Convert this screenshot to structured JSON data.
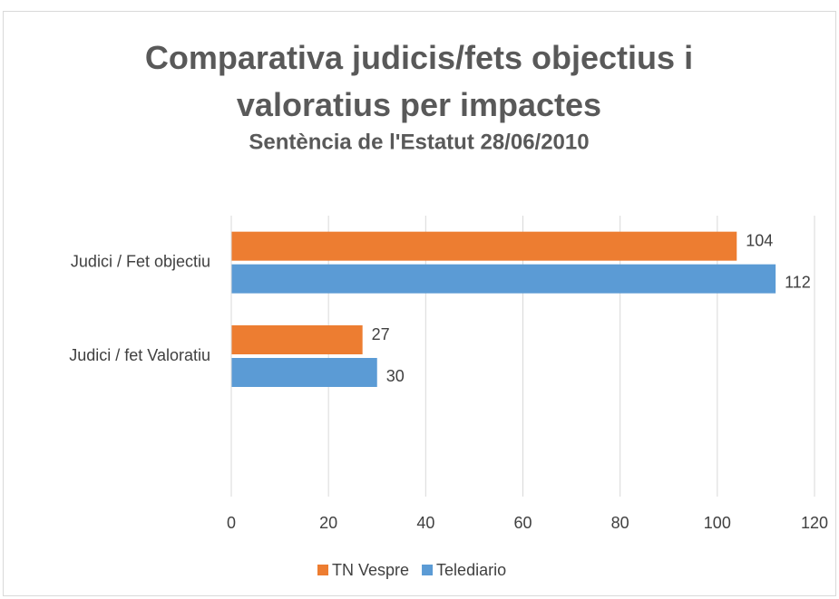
{
  "chart_data": {
    "type": "bar",
    "orientation": "horizontal",
    "title": "Comparativa judicis/fets objectius i valoratius per impactes",
    "subtitle": "Sentència de l'Estatut 28/06/2010",
    "categories": [
      "Judici / Fet objectiu",
      "Judici / fet Valoratiu",
      null
    ],
    "series": [
      {
        "name": "TN Vespre",
        "color": "#ED7D31",
        "values": [
          104,
          27,
          null
        ]
      },
      {
        "name": "Telediario",
        "color": "#5B9BD5",
        "values": [
          112,
          30,
          null
        ]
      }
    ],
    "xlim": [
      0,
      120
    ],
    "xticks": [
      0,
      20,
      40,
      60,
      80,
      100,
      120
    ],
    "grid": true,
    "legend": "bottom"
  }
}
